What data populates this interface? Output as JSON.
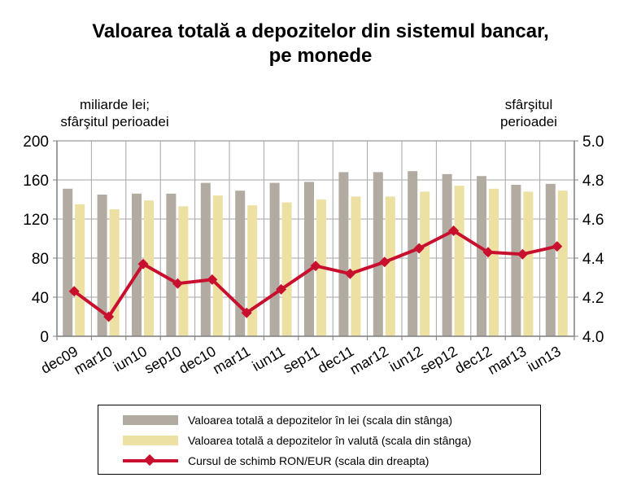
{
  "chart_data": {
    "type": "bar",
    "title": "Valoarea totală a depozitelor din sistemul bancar, pe monede",
    "title_line1": "Valoarea totală a depozitelor din sistemul bancar,",
    "title_line2": "pe monede",
    "ylabel_left_line1": "miliarde lei;",
    "ylabel_left_line2": "sfârşitul perioadei",
    "ylabel_right_line1": "sfârşitul",
    "ylabel_right_line2": "perioadei",
    "categories": [
      "dec09",
      "mar10",
      "iun10",
      "sep10",
      "dec10",
      "mar11",
      "iun11",
      "sep11",
      "dec11",
      "mar12",
      "iun12",
      "sep12",
      "dec12",
      "mar13",
      "iun13"
    ],
    "ylim_left": [
      0,
      200
    ],
    "yticks_left": [
      "0",
      "40",
      "80",
      "120",
      "160",
      "200"
    ],
    "ylim_right": [
      4.0,
      5.0
    ],
    "yticks_right": [
      "4.0",
      "4.2",
      "4.4",
      "4.6",
      "4.8",
      "5.0"
    ],
    "grid": true,
    "legend_position": "bottom",
    "series": [
      {
        "name": "Valoarea totală a depozitelor în lei (scala din stânga)",
        "kind": "bar",
        "axis": "left",
        "color": "#b2aba2",
        "values": [
          151,
          145,
          146,
          146,
          157,
          149,
          157,
          158,
          168,
          168,
          169,
          166,
          164,
          155,
          156
        ]
      },
      {
        "name": "Valoarea totală a depozitelor în valută (scala din stânga)",
        "kind": "bar",
        "axis": "left",
        "color": "#ede0a3",
        "values": [
          135,
          130,
          139,
          133,
          144,
          134,
          137,
          140,
          143,
          143,
          148,
          154,
          151,
          148,
          149
        ]
      },
      {
        "name": "Cursul de schimb RON/EUR (scala din dreapta)",
        "kind": "line",
        "axis": "right",
        "color": "#c8102e",
        "values": [
          4.23,
          4.1,
          4.37,
          4.27,
          4.29,
          4.12,
          4.24,
          4.36,
          4.32,
          4.38,
          4.45,
          4.54,
          4.43,
          4.42,
          4.46
        ]
      }
    ]
  }
}
